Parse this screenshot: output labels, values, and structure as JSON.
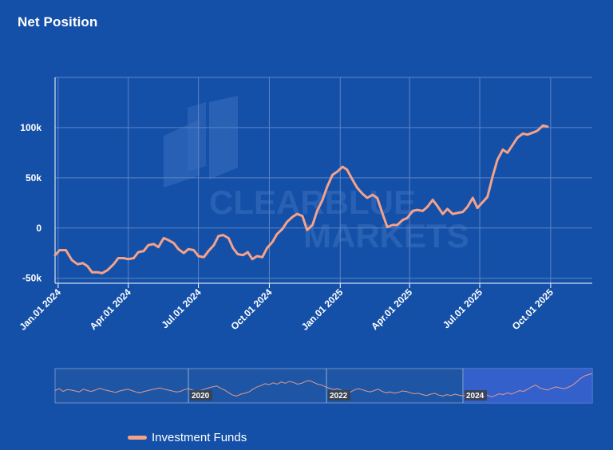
{
  "title": "Net Position",
  "colors": {
    "background": "#1550a8",
    "series": "#f5a28a",
    "grid": "#5b84c4",
    "navigator_fill": "#1e56a5",
    "navigator_selection": "#3a63d6"
  },
  "watermark": {
    "line1": "CLEARBLUE",
    "line2": "MARKETS"
  },
  "chart_data": {
    "type": "line",
    "title": "Net Position",
    "xlabel": "",
    "ylabel": "",
    "ylim": [
      -55000,
      150000
    ],
    "y_ticks": [
      {
        "value": -50000,
        "label": "-50k"
      },
      {
        "value": 0,
        "label": "0"
      },
      {
        "value": 50000,
        "label": "50k"
      },
      {
        "value": 100000,
        "label": "100k"
      }
    ],
    "x_range_days": [
      -4,
      693
    ],
    "x_ticks": [
      {
        "day": 0,
        "label": "Jan.01 2024"
      },
      {
        "day": 91,
        "label": "Apr.01 2024"
      },
      {
        "day": 182,
        "label": "Jul.01 2024"
      },
      {
        "day": 274,
        "label": "Oct.01 2024"
      },
      {
        "day": 366,
        "label": "Jan.01 2025"
      },
      {
        "day": 456,
        "label": "Apr.01 2025"
      },
      {
        "day": 547,
        "label": "Jul.01 2025"
      },
      {
        "day": 639,
        "label": "Oct.01 2025"
      }
    ],
    "series": [
      {
        "name": "Investment Funds",
        "points": [
          [
            -4,
            -27000
          ],
          [
            2,
            -22000
          ],
          [
            10,
            -22000
          ],
          [
            18,
            -32000
          ],
          [
            25,
            -36000
          ],
          [
            32,
            -35000
          ],
          [
            38,
            -38000
          ],
          [
            44,
            -44000
          ],
          [
            51,
            -44000
          ],
          [
            57,
            -45000
          ],
          [
            64,
            -42000
          ],
          [
            72,
            -36000
          ],
          [
            78,
            -30000
          ],
          [
            85,
            -30000
          ],
          [
            91,
            -31000
          ],
          [
            98,
            -30000
          ],
          [
            104,
            -24000
          ],
          [
            111,
            -23000
          ],
          [
            117,
            -17000
          ],
          [
            124,
            -16000
          ],
          [
            130,
            -19000
          ],
          [
            137,
            -10000
          ],
          [
            143,
            -12000
          ],
          [
            150,
            -15000
          ],
          [
            156,
            -21000
          ],
          [
            163,
            -25000
          ],
          [
            169,
            -21000
          ],
          [
            176,
            -22000
          ],
          [
            182,
            -28000
          ],
          [
            189,
            -29000
          ],
          [
            195,
            -23000
          ],
          [
            202,
            -17000
          ],
          [
            208,
            -8000
          ],
          [
            214,
            -7000
          ],
          [
            221,
            -10000
          ],
          [
            227,
            -20000
          ],
          [
            233,
            -26000
          ],
          [
            240,
            -27000
          ],
          [
            246,
            -24000
          ],
          [
            252,
            -31000
          ],
          [
            258,
            -28000
          ],
          [
            265,
            -29000
          ],
          [
            271,
            -20000
          ],
          [
            278,
            -14000
          ],
          [
            284,
            -6000
          ],
          [
            291,
            -1000
          ],
          [
            297,
            6000
          ],
          [
            304,
            11000
          ],
          [
            310,
            14000
          ],
          [
            317,
            12000
          ],
          [
            323,
            -2000
          ],
          [
            330,
            3000
          ],
          [
            336,
            17000
          ],
          [
            343,
            28000
          ],
          [
            349,
            41000
          ],
          [
            356,
            53000
          ],
          [
            362,
            56000
          ],
          [
            369,
            61000
          ],
          [
            375,
            58000
          ],
          [
            382,
            48000
          ],
          [
            388,
            40000
          ],
          [
            395,
            34000
          ],
          [
            401,
            30000
          ],
          [
            408,
            33000
          ],
          [
            414,
            30000
          ],
          [
            421,
            14000
          ],
          [
            427,
            1000
          ],
          [
            434,
            3000
          ],
          [
            440,
            3000
          ],
          [
            447,
            8000
          ],
          [
            453,
            10000
          ],
          [
            460,
            17000
          ],
          [
            466,
            18000
          ],
          [
            473,
            17000
          ],
          [
            479,
            21000
          ],
          [
            486,
            28000
          ],
          [
            492,
            22000
          ],
          [
            499,
            14000
          ],
          [
            505,
            19000
          ],
          [
            512,
            14000
          ],
          [
            518,
            15000
          ],
          [
            525,
            16000
          ],
          [
            531,
            21000
          ],
          [
            538,
            30000
          ],
          [
            544,
            20000
          ],
          [
            551,
            26000
          ],
          [
            557,
            31000
          ],
          [
            564,
            52000
          ],
          [
            570,
            68000
          ],
          [
            577,
            78000
          ],
          [
            583,
            75000
          ],
          [
            590,
            83000
          ],
          [
            596,
            90000
          ],
          [
            603,
            94000
          ],
          [
            609,
            93000
          ],
          [
            616,
            95000
          ],
          [
            622,
            97000
          ],
          [
            629,
            102000
          ],
          [
            635,
            101000
          ]
        ]
      }
    ],
    "navigator": {
      "labels": [
        "2020",
        "2022",
        "2024"
      ],
      "values": [
        52,
        56,
        50,
        54,
        53,
        51,
        49,
        55,
        52,
        50,
        53,
        57,
        54,
        52,
        50,
        48,
        51,
        53,
        55,
        52,
        49,
        47,
        50,
        52,
        54,
        56,
        58,
        55,
        53,
        51,
        49,
        50,
        54,
        56,
        53,
        50,
        52,
        55,
        58,
        60,
        62,
        57,
        53,
        47,
        42,
        40,
        44,
        46,
        49,
        55,
        60,
        63,
        67,
        65,
        69,
        66,
        71,
        68,
        72,
        70,
        66,
        68,
        72,
        74,
        70,
        66,
        64,
        60,
        57,
        54,
        56,
        52,
        50,
        48,
        53,
        56,
        54,
        51,
        49,
        52,
        55,
        50,
        47,
        49,
        46,
        48,
        51,
        50,
        47,
        45,
        46,
        43,
        41,
        44,
        46,
        42,
        40,
        43,
        41,
        44,
        42,
        40,
        43,
        46,
        44,
        41,
        39,
        42,
        38,
        41,
        45,
        43,
        47,
        44,
        48,
        52,
        50,
        55,
        60,
        64,
        58,
        55,
        53,
        57,
        60,
        58,
        56,
        59,
        63,
        70,
        78,
        84,
        87,
        89
      ]
    }
  },
  "legend": {
    "label": "Investment Funds"
  }
}
